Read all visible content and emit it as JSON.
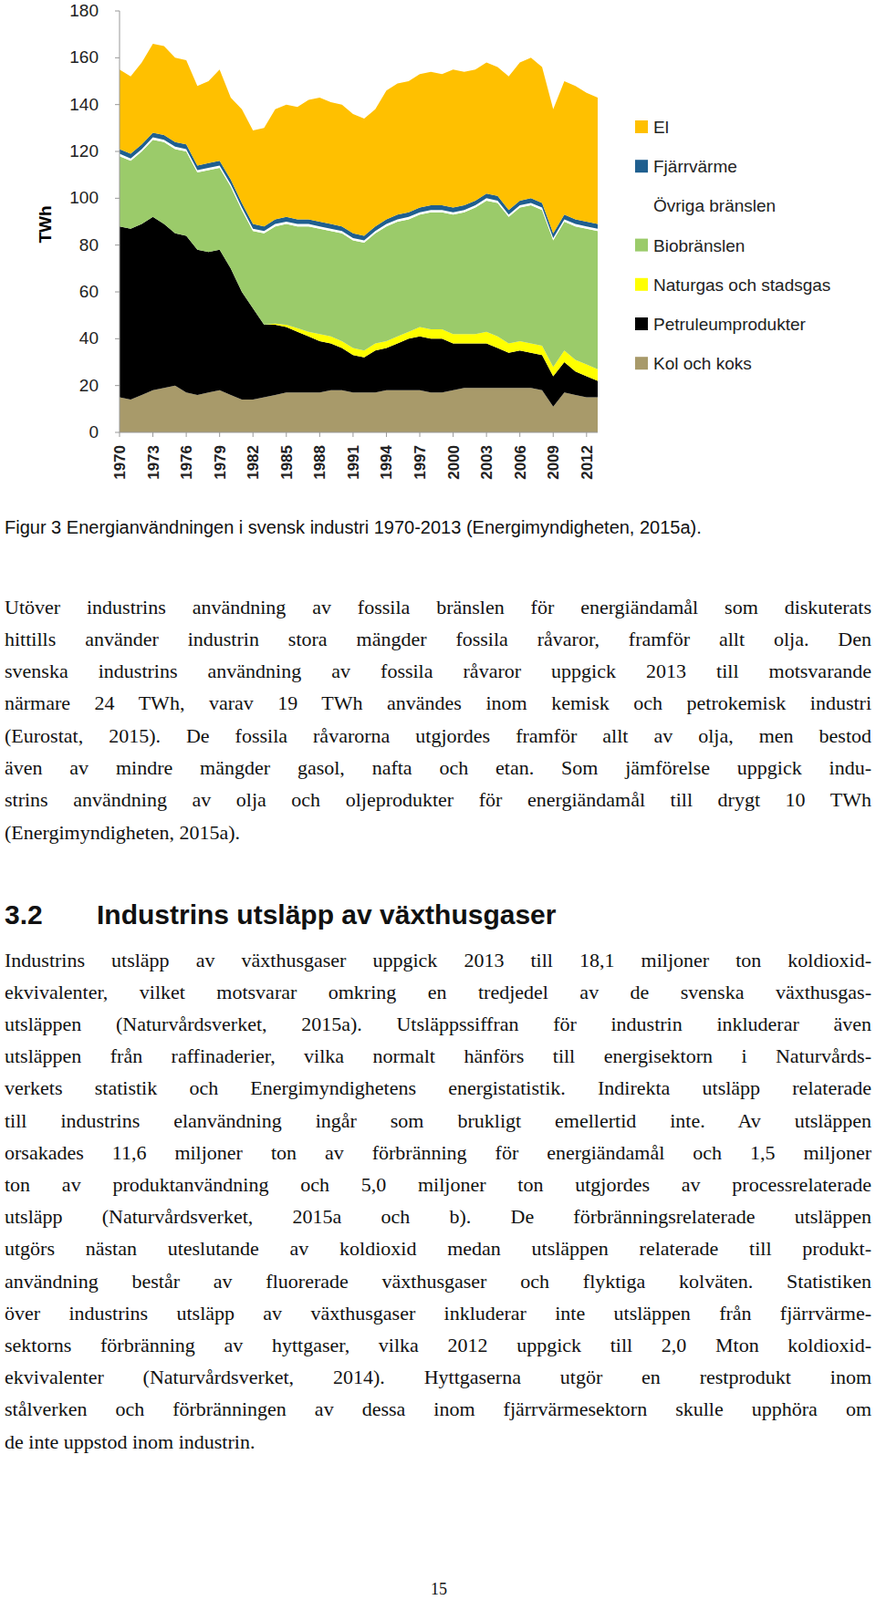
{
  "chart_data": {
    "type": "area",
    "stacked": true,
    "ylabel": "TWh",
    "legend": "right",
    "x": [
      1970,
      1971,
      1972,
      1973,
      1974,
      1975,
      1976,
      1977,
      1978,
      1979,
      1980,
      1981,
      1982,
      1983,
      1984,
      1985,
      1986,
      1987,
      1988,
      1989,
      1990,
      1991,
      1992,
      1993,
      1994,
      1995,
      1996,
      1997,
      1998,
      1999,
      2000,
      2001,
      2002,
      2003,
      2004,
      2005,
      2006,
      2007,
      2008,
      2009,
      2010,
      2011,
      2012,
      2013
    ],
    "xlim": [
      1970,
      2013
    ],
    "xticks": [
      1970,
      1973,
      1976,
      1979,
      1982,
      1985,
      1988,
      1991,
      1994,
      1997,
      2000,
      2003,
      2006,
      2009,
      2012
    ],
    "ylim": [
      0,
      180
    ],
    "yticks": [
      0,
      20,
      40,
      60,
      80,
      100,
      120,
      140,
      160,
      180
    ],
    "series": [
      {
        "name": "Kol och koks",
        "color": "#a89a6a",
        "values": [
          15,
          14,
          16,
          18,
          19,
          20,
          17,
          16,
          17,
          18,
          16,
          14,
          14,
          15,
          16,
          17,
          17,
          17,
          17,
          18,
          18,
          17,
          17,
          17,
          18,
          18,
          18,
          18,
          17,
          17,
          18,
          19,
          19,
          19,
          19,
          19,
          19,
          19,
          18,
          11,
          17,
          16,
          15,
          15
        ]
      },
      {
        "name": "Petruleumprodukter",
        "color": "#000000",
        "values": [
          73,
          73,
          73,
          74,
          70,
          65,
          67,
          62,
          60,
          60,
          54,
          46,
          39,
          31,
          30,
          28,
          26,
          24,
          22,
          20,
          18,
          16,
          15,
          18,
          18,
          20,
          22,
          23,
          23,
          23,
          20,
          19,
          19,
          19,
          17,
          15,
          16,
          15,
          15,
          13,
          13,
          10,
          9,
          7
        ]
      },
      {
        "name": "Naturgas och stadsgas",
        "color": "#ffff00",
        "values": [
          0,
          0,
          0,
          0,
          0,
          0,
          0,
          0,
          0,
          0,
          0,
          0,
          0,
          0,
          0.5,
          1,
          1.5,
          2,
          3,
          3,
          3,
          3,
          3,
          3,
          3,
          3,
          3,
          4,
          4,
          4,
          4,
          4,
          4,
          5,
          5,
          4,
          4,
          4,
          4,
          4,
          5,
          5,
          5,
          5
        ]
      },
      {
        "name": "Biobränslen",
        "color": "#9bcb6a",
        "values": [
          30,
          29,
          31,
          33,
          35,
          36,
          36,
          33,
          35,
          35,
          35,
          35,
          33,
          39,
          41.5,
          43,
          43.5,
          45,
          45,
          45,
          46,
          46,
          46,
          47,
          49,
          49,
          48,
          48,
          50,
          50,
          51,
          52,
          54,
          56,
          57,
          54,
          57,
          59,
          58,
          54,
          55,
          57,
          58,
          59
        ]
      },
      {
        "name": "Övriga bränslen",
        "color": "#ffffff",
        "values": [
          1,
          1,
          1,
          1,
          1,
          1,
          1,
          1,
          1,
          1,
          1,
          1,
          1,
          1,
          1,
          1,
          1,
          1,
          1,
          1,
          1,
          1,
          1,
          1,
          1,
          1,
          1,
          1,
          1,
          1,
          1,
          1,
          1,
          1,
          1,
          1,
          1,
          1,
          1,
          1,
          1,
          1,
          1,
          1
        ]
      },
      {
        "name": "Fjärrvärme",
        "color": "#1f5f8f",
        "values": [
          2,
          2,
          2,
          2,
          2,
          2,
          2,
          2,
          2,
          2,
          2,
          2,
          2,
          2,
          2,
          2,
          2,
          2,
          2,
          2,
          2,
          2,
          2,
          2,
          2,
          2,
          2,
          2,
          2,
          2,
          2,
          2,
          2,
          2,
          2,
          2,
          2,
          2,
          2,
          2,
          2,
          2,
          2,
          2
        ]
      },
      {
        "name": "El",
        "color": "#ffc000",
        "values": [
          34,
          33,
          35,
          38,
          38,
          36,
          36,
          34,
          35,
          39,
          35,
          40,
          40,
          42,
          47,
          48,
          48,
          51,
          53,
          52,
          52,
          51,
          50,
          50,
          55,
          56,
          56,
          57,
          57,
          56,
          59,
          57,
          56,
          56,
          55,
          57,
          59,
          60,
          58,
          53,
          57,
          57,
          55,
          54
        ]
      }
    ]
  },
  "document": {
    "caption": "Figur 3 Energianvändningen i svensk industri 1970-2013 (Energimyndigheten, 2015a).",
    "paragraph_1": [
      "Utöver industrins användning av fossila bränslen för energiändamål som diskuterats",
      "hittills använder industrin stora mängder fossila råvaror, framför allt olja. Den",
      "svenska industrins användning av fossila råvaror uppgick 2013 till motsvarande",
      "närmare 24 TWh, varav 19 TWh användes inom kemisk och petrokemisk industri",
      "(Eurostat, 2015). De fossila råvarorna utgjordes framför allt av olja, men bestod",
      "även av mindre mängder gasol, nafta och etan. Som jämförelse uppgick indu-",
      "strins användning av olja och oljeprodukter för energiändamål till drygt 10 TWh",
      "(Energimyndigheten, 2015a)."
    ],
    "heading": {
      "number": "3.2",
      "text": "Industrins utsläpp av växthusgaser"
    },
    "paragraph_2": [
      "Industrins utsläpp av växthusgaser uppgick 2013 till 18,1 miljoner ton koldioxid-",
      "ekvivalenter, vilket motsvarar omkring en tredjedel av de svenska växthusgas-",
      "utsläppen (Naturvårdsverket, 2015a). Utsläppssiffran för industrin inkluderar även",
      "utsläppen från raffinaderier, vilka normalt hänförs till energisektorn i Naturvårds-",
      "verkets statistik och Energimyndighetens energistatistik. Indirekta utsläpp relaterade",
      "till industrins elanvändning ingår som brukligt emellertid inte. Av utsläppen",
      "orsakades 11,6 miljoner ton av förbränning för energiändamål och 1,5 miljoner",
      "ton av produktanvändning och 5,0 miljoner ton utgjordes av processrelaterade",
      "utsläpp (Naturvårdsverket, 2015a och b). De förbränningsrelaterade utsläppen",
      "utgörs nästan uteslutande av koldioxid medan utsläppen relaterade till produkt-",
      "användning består av fluorerade växthusgaser och flyktiga kolväten. Statistiken",
      "över industrins utsläpp av växthusgaser inkluderar inte utsläppen från fjärrvärme-",
      "sektorns förbränning av hyttgaser, vilka 2012 uppgick till 2,0 Mton koldioxid-",
      "ekvivalenter (Naturvårdsverket, 2014). Hyttgaserna utgör en restprodukt inom",
      "stålverken och förbränningen av dessa inom fjärrvärmesektorn skulle upphöra om",
      "de inte uppstod inom industrin."
    ],
    "page_number": "15"
  }
}
